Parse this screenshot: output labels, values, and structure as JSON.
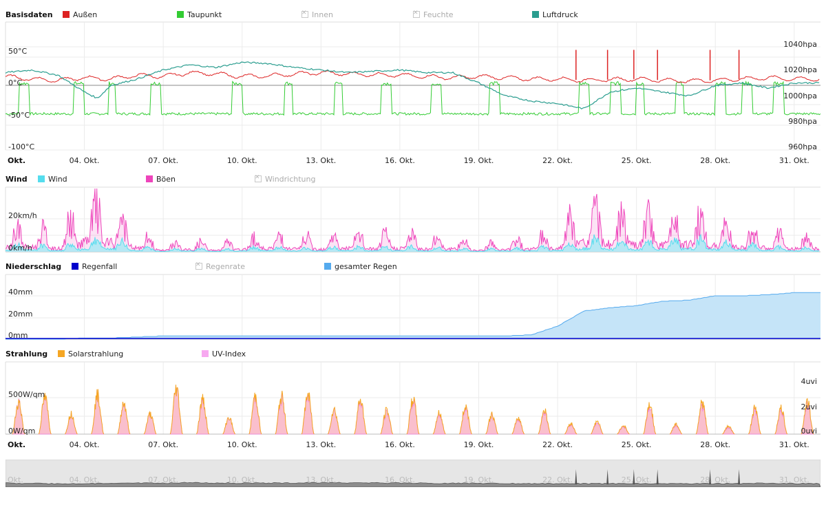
{
  "x_axis": {
    "first_label": "Okt.",
    "ticks": [
      "04. Okt.",
      "07. Okt.",
      "10. Okt.",
      "13. Okt.",
      "16. Okt.",
      "19. Okt.",
      "22. Okt.",
      "25. Okt.",
      "28. Okt.",
      "31. Okt."
    ]
  },
  "panels": {
    "basis": {
      "title": "Basisdaten",
      "legend": [
        {
          "name": "Außen",
          "color": "#dd2222",
          "enabled": true
        },
        {
          "name": "Taupunkt",
          "color": "#33cc33",
          "enabled": true
        },
        {
          "name": "Innen",
          "color": "#cccccc",
          "enabled": false
        },
        {
          "name": "Feuchte",
          "color": "#cccccc",
          "enabled": false
        },
        {
          "name": "Luftdruck",
          "color": "#2a9d8f",
          "enabled": true
        }
      ],
      "left_ticks": [
        "50°C",
        "0°C",
        "-50°C",
        "-100°C"
      ],
      "right_ticks": [
        "1040hpa",
        "1020hpa",
        "1000hpa",
        "980hpa",
        "960hpa"
      ]
    },
    "wind": {
      "title": "Wind",
      "legend": [
        {
          "name": "Wind",
          "color": "#55ddee",
          "enabled": true
        },
        {
          "name": "Böen",
          "color": "#ee44bb",
          "enabled": true
        },
        {
          "name": "Windrichtung",
          "color": "#cccccc",
          "enabled": false
        }
      ],
      "left_ticks": [
        "20km/h",
        "0km/h"
      ]
    },
    "rain": {
      "title": "Niederschlag",
      "legend": [
        {
          "name": "Regenfall",
          "color": "#0000cc",
          "enabled": true
        },
        {
          "name": "Regenrate",
          "color": "#cccccc",
          "enabled": false
        },
        {
          "name": "gesamter Regen",
          "color": "#55aaee",
          "enabled": true
        }
      ],
      "left_ticks": [
        "40mm",
        "20mm",
        "0mm"
      ]
    },
    "sun": {
      "title": "Strahlung",
      "legend": [
        {
          "name": "Solarstrahlung",
          "color": "#f5a623",
          "enabled": true
        },
        {
          "name": "UV-Index",
          "color": "#f7a8f0",
          "enabled": true
        }
      ],
      "left_ticks": [
        "500W/qm",
        "0W/qm"
      ],
      "right_ticks": [
        "4uvi",
        "2uvi",
        "0uvi"
      ]
    }
  },
  "chart_data": [
    {
      "type": "line",
      "title": "Basisdaten",
      "x_range": [
        "01. Okt.",
        "31. Okt."
      ],
      "ylim_left": [
        -100,
        100
      ],
      "ylim_right": [
        960,
        1060
      ],
      "series": [
        {
          "name": "Außen",
          "axis": "left",
          "color": "#dd2222",
          "day": [
            1,
            2,
            3,
            4,
            5,
            6,
            7,
            8,
            9,
            10,
            11,
            12,
            13,
            14,
            15,
            16,
            17,
            18,
            19,
            20,
            21,
            22,
            23,
            24,
            25,
            26,
            27,
            28,
            29,
            30,
            31
          ],
          "values": [
            14,
            10,
            8,
            12,
            10,
            16,
            14,
            20,
            18,
            14,
            15,
            18,
            20,
            18,
            17,
            16,
            14,
            12,
            14,
            12,
            10,
            10,
            8,
            9,
            10,
            8,
            7,
            8,
            10,
            12,
            10
          ],
          "spikes": [
            {
              "day": 22.7,
              "value": 56
            },
            {
              "day": 23.9,
              "value": 56
            },
            {
              "day": 24.9,
              "value": 56
            },
            {
              "day": 25.8,
              "value": 56
            },
            {
              "day": 27.8,
              "value": 56
            },
            {
              "day": 28.9,
              "value": 56
            }
          ]
        },
        {
          "name": "Taupunkt",
          "axis": "left",
          "color": "#33cc33",
          "low_value": -45,
          "high_value": 3,
          "high_intervals": [
            [
              1.5,
              1.9
            ],
            [
              3.6,
              4.0
            ],
            [
              4.9,
              5.2
            ],
            [
              6.5,
              6.9
            ],
            [
              9.6,
              10.0
            ],
            [
              11.6,
              11.9
            ],
            [
              13.5,
              13.8
            ],
            [
              15.3,
              15.7
            ],
            [
              17.2,
              17.6
            ],
            [
              19.4,
              19.8
            ],
            [
              22.8,
              23.2
            ],
            [
              24.0,
              24.4
            ],
            [
              25.0,
              25.3
            ],
            [
              26.5,
              26.8
            ],
            [
              28.0,
              28.4
            ],
            [
              29.0,
              29.4
            ],
            [
              30.2,
              30.6
            ]
          ]
        },
        {
          "name": "Luftdruck",
          "axis": "right",
          "color": "#2a9d8f",
          "day": [
            1,
            2,
            3,
            4,
            4.5,
            5,
            6,
            7,
            8,
            9,
            10,
            11,
            12,
            13,
            14,
            15,
            16,
            17,
            18,
            19,
            20,
            21,
            22,
            23,
            24,
            25,
            26,
            27,
            28,
            29,
            30,
            31
          ],
          "values": [
            1020,
            1022,
            1018,
            1005,
            1000,
            1010,
            1015,
            1022,
            1026,
            1024,
            1028,
            1027,
            1024,
            1022,
            1020,
            1021,
            1022,
            1020,
            1020,
            1012,
            1002,
            998,
            996,
            992,
            1005,
            1008,
            1005,
            1002,
            1010,
            1012,
            1008,
            1012
          ]
        }
      ]
    },
    {
      "type": "area",
      "title": "Wind",
      "ylim": [
        0,
        35
      ],
      "series": [
        {
          "name": "Wind",
          "color": "#55ddee",
          "day": [
            1,
            2,
            3,
            4,
            5,
            6,
            7,
            8,
            9,
            10,
            11,
            12,
            13,
            14,
            15,
            16,
            17,
            18,
            19,
            20,
            21,
            22,
            23,
            24,
            25,
            26,
            27,
            28,
            29,
            30,
            31
          ],
          "values": [
            3,
            4,
            2,
            6,
            7,
            3,
            1,
            2,
            1,
            2,
            3,
            2,
            2,
            3,
            2,
            3,
            2,
            2,
            1,
            2,
            2,
            3,
            7,
            6,
            5,
            6,
            7,
            5,
            4,
            3,
            2
          ]
        },
        {
          "name": "Böen",
          "color": "#ee44bb",
          "day": [
            1,
            2,
            3,
            4,
            5,
            6,
            7,
            8,
            9,
            10,
            11,
            12,
            13,
            14,
            15,
            16,
            17,
            18,
            19,
            20,
            21,
            22,
            23,
            24,
            25,
            26,
            27,
            28,
            29,
            30,
            31
          ],
          "values": [
            12,
            14,
            8,
            28,
            24,
            10,
            4,
            6,
            4,
            6,
            10,
            8,
            8,
            10,
            8,
            10,
            8,
            8,
            4,
            6,
            8,
            10,
            26,
            22,
            18,
            20,
            22,
            16,
            14,
            10,
            8
          ]
        }
      ]
    },
    {
      "type": "area",
      "title": "Niederschlag",
      "ylim": [
        0,
        50
      ],
      "series": [
        {
          "name": "gesamter Regen",
          "color": "#55aaee",
          "day": [
            1,
            2,
            3,
            4,
            5,
            6,
            7,
            8,
            9,
            10,
            11,
            12,
            13,
            14,
            15,
            16,
            17,
            18,
            19,
            20,
            21,
            22,
            23,
            24,
            25,
            26,
            27,
            28,
            29,
            30,
            31
          ],
          "values": [
            0,
            0,
            0,
            1,
            1,
            2,
            3,
            3,
            3,
            3,
            3,
            3,
            3,
            3,
            3,
            3,
            3,
            3,
            3,
            3,
            4,
            12,
            26,
            29,
            31,
            35,
            36,
            40,
            40,
            41,
            43
          ]
        },
        {
          "name": "Regenfall",
          "color": "#0000cc",
          "values_note": "near zero baseline"
        }
      ]
    },
    {
      "type": "area",
      "title": "Strahlung",
      "ylim_left": [
        0,
        800
      ],
      "ylim_right": [
        0,
        6
      ],
      "series": [
        {
          "name": "Solarstrahlung",
          "axis": "left",
          "color": "#f5a623",
          "day": [
            1,
            2,
            3,
            4,
            5,
            6,
            7,
            8,
            9,
            10,
            11,
            12,
            13,
            14,
            15,
            16,
            17,
            18,
            19,
            20,
            21,
            22,
            23,
            24,
            25,
            26,
            27,
            28,
            29,
            30,
            31
          ],
          "values": [
            480,
            550,
            300,
            580,
            470,
            300,
            690,
            520,
            250,
            570,
            560,
            600,
            370,
            520,
            360,
            530,
            320,
            420,
            290,
            250,
            360,
            160,
            190,
            130,
            450,
            150,
            470,
            120,
            380,
            380,
            480
          ]
        },
        {
          "name": "UV-Index",
          "axis": "right",
          "color": "#f7a8f0",
          "day": [
            1,
            2,
            3,
            4,
            5,
            6,
            7,
            8,
            9,
            10,
            11,
            12,
            13,
            14,
            15,
            16,
            17,
            18,
            19,
            20,
            21,
            22,
            23,
            24,
            25,
            26,
            27,
            28,
            29,
            30,
            31
          ],
          "values": [
            3.0,
            3.3,
            1.8,
            3.5,
            2.8,
            1.8,
            4.2,
            3.0,
            1.5,
            3.3,
            3.2,
            3.5,
            2.2,
            3.0,
            2.0,
            3.0,
            1.8,
            2.4,
            1.7,
            1.4,
            2.0,
            0.9,
            1.0,
            0.7,
            2.5,
            0.8,
            2.6,
            0.6,
            2.1,
            2.1,
            2.7
          ]
        }
      ]
    }
  ]
}
